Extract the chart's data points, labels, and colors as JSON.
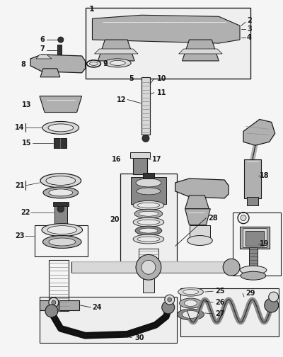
{
  "bg_color": "#f0f0f0",
  "line_color": "#1a1a1a",
  "chrome_color": "#b0b0b0",
  "dark_color": "#333333",
  "mid_color": "#888888",
  "light_color": "#d8d8d8"
}
